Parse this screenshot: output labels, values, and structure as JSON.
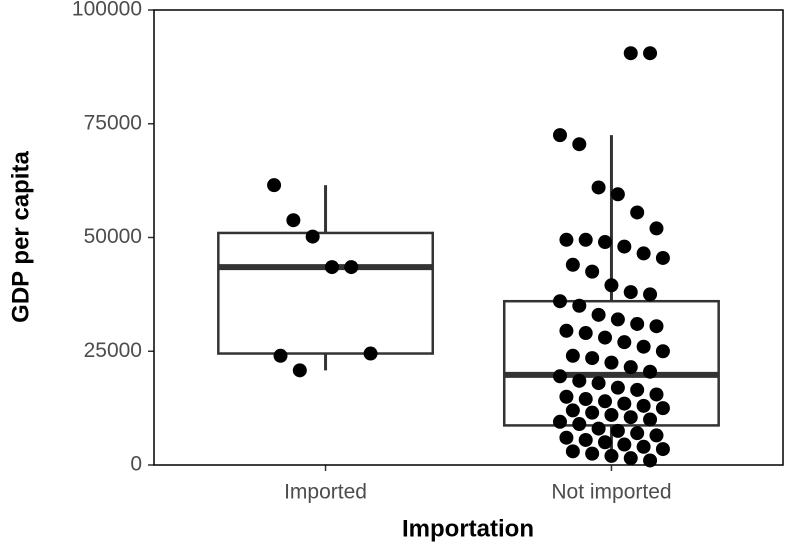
{
  "chart_data": {
    "type": "box",
    "x_label": "Importation",
    "y_label": "GDP per capita",
    "categories": [
      "Imported",
      "Not imported"
    ],
    "boxes": [
      {
        "min": 20800,
        "q1": 24500,
        "median": 43500,
        "q3": 51000,
        "max": 61500,
        "points": [
          61500,
          53800,
          50200,
          43500,
          43500,
          24500,
          24000,
          20800
        ]
      },
      {
        "min": 600,
        "q1": 8700,
        "median": 19800,
        "q3": 36000,
        "max": 72500,
        "points": [
          90500,
          90500,
          72500,
          70500,
          61000,
          59500,
          55500,
          52000,
          49500,
          49500,
          49000,
          48000,
          46500,
          45500,
          44000,
          42500,
          39500,
          38000,
          37500,
          36000,
          35000,
          33000,
          32000,
          31000,
          30500,
          29500,
          29000,
          28000,
          27000,
          26000,
          25000,
          24000,
          23500,
          22500,
          21500,
          20500,
          19500,
          18500,
          18000,
          17000,
          16500,
          15500,
          15000,
          14500,
          14000,
          13500,
          13000,
          12500,
          12000,
          11500,
          11000,
          10500,
          10000,
          9500,
          9000,
          8000,
          7500,
          7000,
          6500,
          6000,
          5500,
          5000,
          4500,
          4000,
          3500,
          3000,
          2500,
          2000,
          1500,
          1000
        ]
      }
    ],
    "ylim": [
      0,
      100000
    ],
    "yticks": [
      0,
      25000,
      50000,
      75000,
      100000
    ],
    "point_color": "#000000",
    "box_color": "#333333"
  }
}
